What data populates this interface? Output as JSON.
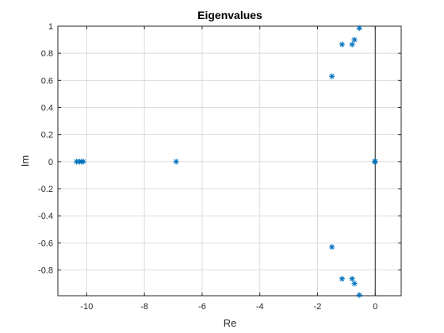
{
  "chart_data": {
    "type": "scatter",
    "title": "Eigenvalues",
    "xlabel": "Re",
    "ylabel": "Im",
    "xlim": [
      -11,
      0.9
    ],
    "ylim": [
      -0.99,
      1.0
    ],
    "xticks": [
      -10,
      -8,
      -6,
      -4,
      -2,
      0
    ],
    "xtick_labels": [
      "-10",
      "-8",
      "-6",
      "-4",
      "-2",
      "0"
    ],
    "yticks": [
      1,
      0.8,
      0.6,
      0.4,
      0.2,
      0,
      -0.2,
      -0.4,
      -0.6,
      -0.8
    ],
    "ytick_labels": [
      "1",
      "0.8",
      "0.6",
      "0.4",
      "0.2",
      "0",
      "-0.2",
      "-0.4",
      "-0.6",
      "-0.8"
    ],
    "grid": true,
    "marker": "asterisk",
    "color": "#0072BD",
    "reference_line": {
      "axis": "x",
      "value": 0
    },
    "points": [
      {
        "x": -10.35,
        "y": 0.0
      },
      {
        "x": -10.25,
        "y": 0.0
      },
      {
        "x": -10.18,
        "y": 0.0
      },
      {
        "x": -10.12,
        "y": 0.0
      },
      {
        "x": -6.9,
        "y": 0.0
      },
      {
        "x": -1.5,
        "y": 0.63
      },
      {
        "x": -1.5,
        "y": -0.63
      },
      {
        "x": -1.15,
        "y": 0.865
      },
      {
        "x": -1.15,
        "y": -0.865
      },
      {
        "x": -0.8,
        "y": 0.865
      },
      {
        "x": -0.8,
        "y": -0.865
      },
      {
        "x": -0.72,
        "y": 0.9
      },
      {
        "x": -0.72,
        "y": -0.9
      },
      {
        "x": -0.55,
        "y": 0.985
      },
      {
        "x": -0.55,
        "y": -0.985
      },
      {
        "x": -0.02,
        "y": 0.0
      },
      {
        "x": 0.0,
        "y": 0.0
      }
    ]
  }
}
